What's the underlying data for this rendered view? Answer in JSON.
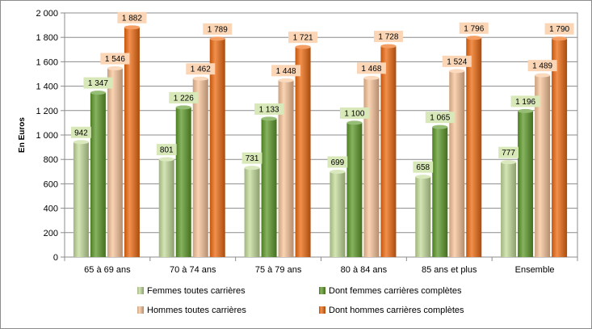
{
  "chart_data": {
    "type": "bar",
    "ylabel": "En Euros",
    "ylim": [
      0,
      2000
    ],
    "ytick_step": 200,
    "grid": true,
    "legend_position": "bottom",
    "categories": [
      "65 à 69 ans",
      "70 à 74 ans",
      "75 à 79 ans",
      "80 à 84 ans",
      "85 ans et plus",
      "Ensemble"
    ],
    "series": [
      {
        "name": "Femmes toutes carrières",
        "color": "#c4dc9a",
        "label_bg": "#d8e8b8",
        "values": [
          942,
          801,
          731,
          699,
          658,
          777
        ],
        "labels": [
          "942",
          "801",
          "731",
          "699",
          "658",
          "777"
        ]
      },
      {
        "name": "Dont femmes carrières complètes",
        "color": "#5e9a2a",
        "label_bg": "#d8e8b8",
        "values": [
          1347,
          1226,
          1133,
          1100,
          1065,
          1196
        ],
        "labels": [
          "1 347",
          "1 226",
          "1 133",
          "1 100",
          "1 065",
          "1 196"
        ]
      },
      {
        "name": "Hommes toutes carrières",
        "color": "#f8c49a",
        "label_bg": "#fbd6b6",
        "values": [
          1546,
          1462,
          1448,
          1468,
          1524,
          1489
        ],
        "labels": [
          "1 546",
          "1 462",
          "1 448",
          "1 468",
          "1 524",
          "1 489"
        ]
      },
      {
        "name": "Dont hommes carrières complètes",
        "color": "#ee6a10",
        "label_bg": "#fbd6b6",
        "values": [
          1882,
          1789,
          1721,
          1728,
          1796,
          1790
        ],
        "labels": [
          "1 882",
          "1 789",
          "1 721",
          "1 728",
          "1 796",
          "1 790"
        ]
      }
    ],
    "ytick_labels": [
      "0",
      "200",
      "400",
      "600",
      "800",
      "1 000",
      "1 200",
      "1 400",
      "1 600",
      "1 800",
      "2 000"
    ]
  }
}
